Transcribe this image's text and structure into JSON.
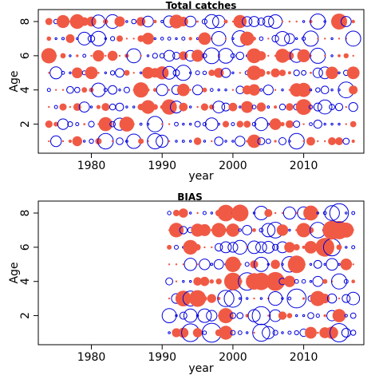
{
  "colors": {
    "positive": "#F05A45",
    "negative": "#0000DD",
    "axis": "#000000"
  },
  "chart_data": [
    {
      "type": "scatter",
      "title": "Total catches",
      "xlabel": "year",
      "ylabel": "Age",
      "xlim": [
        1972.5,
        2018.5
      ],
      "ylim": [
        0.3,
        8.7
      ],
      "xticks": [
        1980,
        1990,
        2000,
        2010
      ],
      "yticks": [
        2,
        4,
        6,
        8
      ],
      "x_range": [
        1974,
        2017
      ],
      "ages": [
        1,
        2,
        3,
        4,
        5,
        6,
        7,
        8
      ],
      "max_radius": 10,
      "seed": 7
    },
    {
      "type": "scatter",
      "title": "BIAS",
      "xlabel": "year",
      "ylabel": "Age",
      "xlim": [
        1972.5,
        2018.5
      ],
      "ylim": [
        0.3,
        8.7
      ],
      "xticks": [
        1980,
        1990,
        2000,
        2010
      ],
      "yticks": [
        2,
        4,
        6,
        8
      ],
      "x_range": [
        1991,
        2017
      ],
      "ages": [
        1,
        2,
        3,
        4,
        5,
        6,
        7,
        8
      ],
      "max_radius": 12,
      "seed": 19
    }
  ]
}
